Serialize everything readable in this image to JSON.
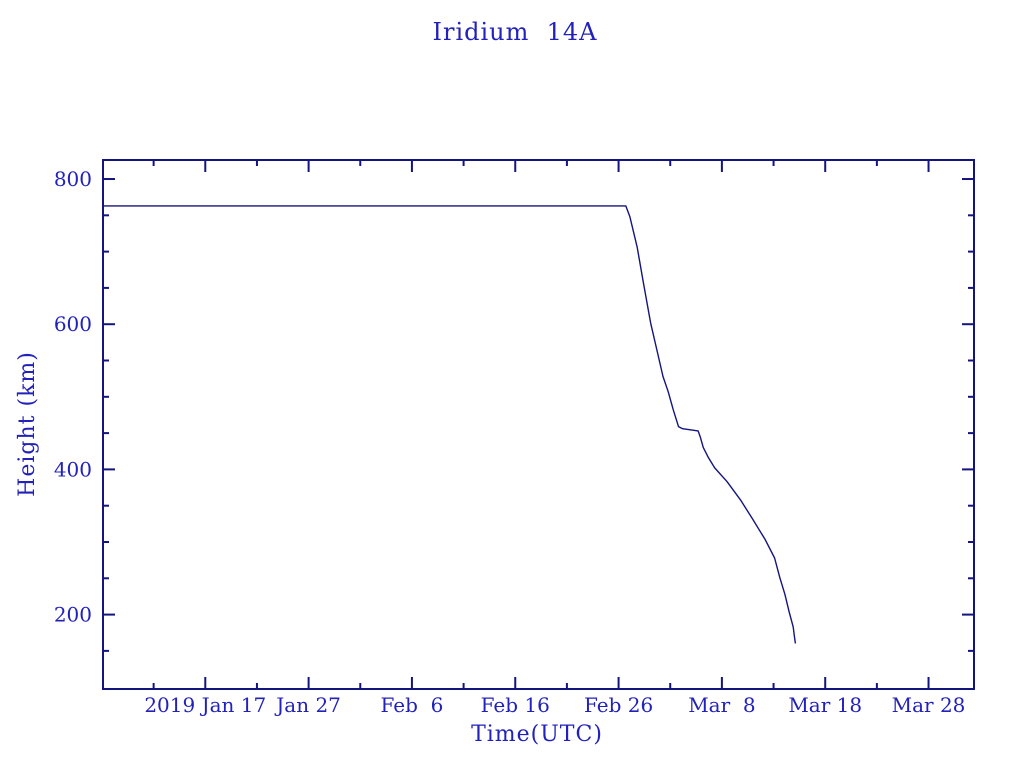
{
  "page": {
    "background": "#ffffff"
  },
  "colors": {
    "text": "#2222bb",
    "axis": "#14147e",
    "curve": "#14147e"
  },
  "chart_data": {
    "type": "line",
    "title": "Iridium  14A",
    "xlabel": "Time(UTC)",
    "ylabel": "Height (km)",
    "x_unit": "day_of_year_2019",
    "xlim": [
      7.1,
      91.4
    ],
    "ylim": [
      97.5,
      826.2
    ],
    "grid": false,
    "legend": null,
    "x_major_ticks": [
      {
        "doy": 17,
        "label": "2019 Jan 17"
      },
      {
        "doy": 27,
        "label": "Jan 27"
      },
      {
        "doy": 37,
        "label": "Feb  6"
      },
      {
        "doy": 47,
        "label": "Feb 16"
      },
      {
        "doy": 57,
        "label": "Feb 26"
      },
      {
        "doy": 67,
        "label": "Mar  8"
      },
      {
        "doy": 77,
        "label": "Mar 18"
      },
      {
        "doy": 87,
        "label": "Mar 28"
      }
    ],
    "x_minor_ticks_doy": [
      12,
      22,
      32,
      42,
      52,
      62,
      72,
      82
    ],
    "y_major_ticks": [
      {
        "km": 200,
        "label": "200"
      },
      {
        "km": 400,
        "label": "400"
      },
      {
        "km": 600,
        "label": "600"
      },
      {
        "km": 800,
        "label": "800"
      }
    ],
    "y_minor_ticks_km": [
      150,
      250,
      300,
      350,
      450,
      500,
      550,
      650,
      700,
      750
    ],
    "series": [
      {
        "name": "orbit-height",
        "points_doy_km": [
          [
            7.1,
            763
          ],
          [
            57.7,
            763
          ],
          [
            58.1,
            748
          ],
          [
            58.8,
            706
          ],
          [
            59.4,
            657
          ],
          [
            60.1,
            602
          ],
          [
            60.7,
            565
          ],
          [
            61.3,
            528
          ],
          [
            61.8,
            507
          ],
          [
            62.3,
            482
          ],
          [
            62.8,
            459
          ],
          [
            63.2,
            456
          ],
          [
            64.7,
            453
          ],
          [
            64.9,
            445
          ],
          [
            65.2,
            430
          ],
          [
            65.7,
            416
          ],
          [
            66.3,
            402
          ],
          [
            67.5,
            383
          ],
          [
            68.8,
            358
          ],
          [
            70.0,
            331
          ],
          [
            71.2,
            303
          ],
          [
            72.1,
            278
          ],
          [
            72.6,
            251
          ],
          [
            73.1,
            228
          ],
          [
            73.5,
            204
          ],
          [
            73.9,
            183
          ],
          [
            74.0,
            172
          ],
          [
            74.1,
            161
          ]
        ]
      }
    ]
  }
}
